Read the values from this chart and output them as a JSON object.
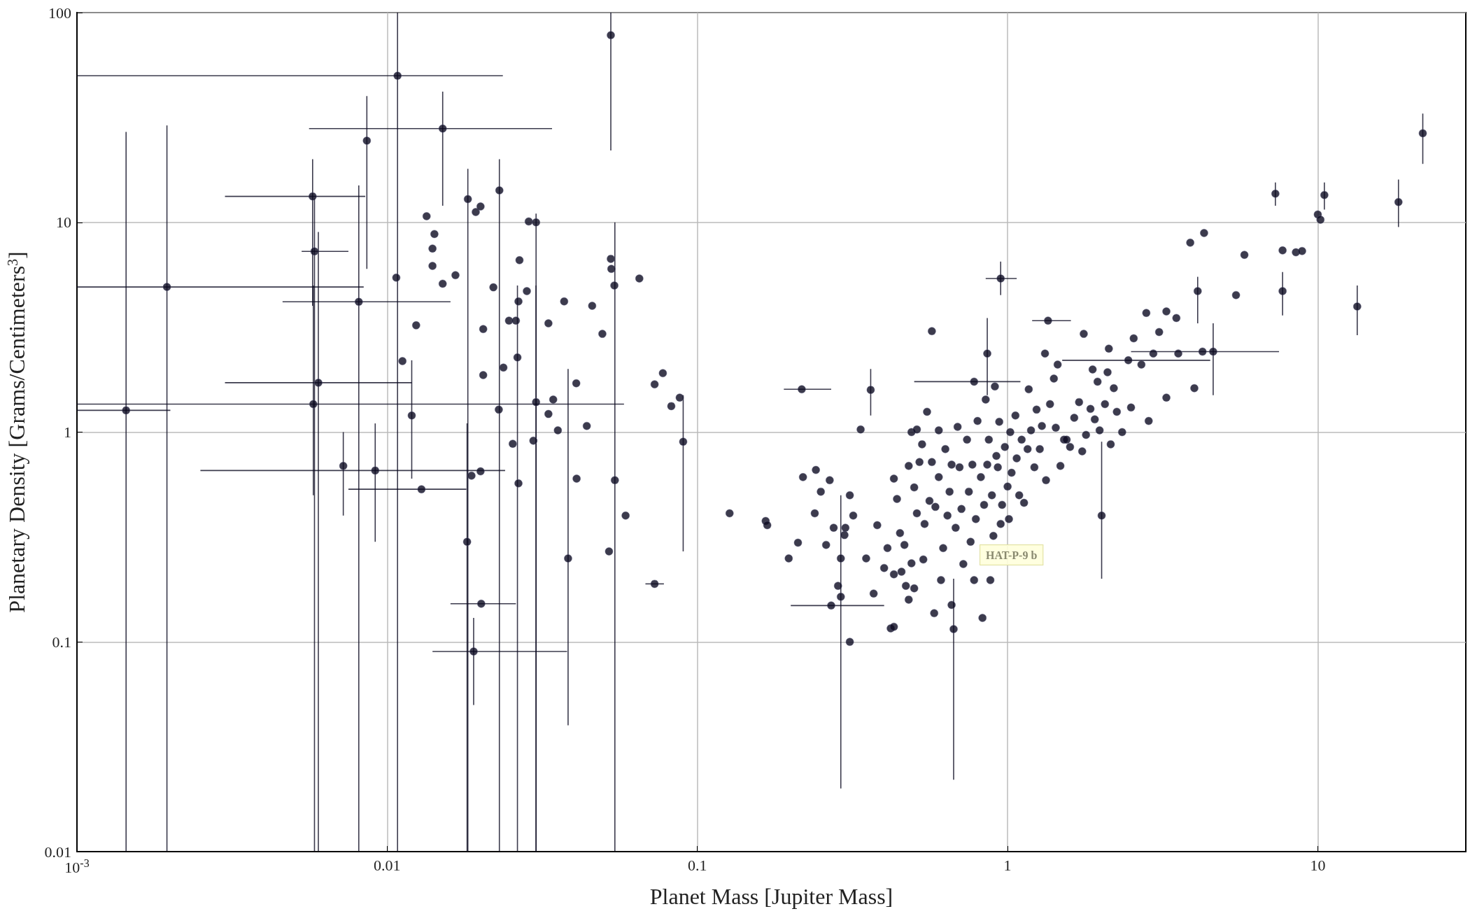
{
  "chart_data": {
    "type": "scatter",
    "xlabel": "Planet Mass [Jupiter Mass]",
    "ylabel": "Planetary Density [Grams/Centimeters$^{3}$]",
    "log": "xy",
    "grid": true,
    "marker": "circle",
    "xlim": [
      0.001,
      30
    ],
    "ylim": [
      0.01,
      100
    ],
    "xticks": [
      {
        "value": 0.001,
        "label": "10$^{-3}$"
      },
      0.01,
      0.1,
      1,
      10
    ],
    "yticks": [
      0.01,
      0.1,
      1,
      10,
      100
    ],
    "annotations": [
      "HAT-P-9 b"
    ],
    "series": [
      {
        "color": "#0b0a20",
        "x": [
          0.00144,
          0.00195,
          0.00575,
          0.00583,
          0.006,
          0.00578,
          0.00722,
          0.0081,
          0.0086,
          0.00915,
          0.0107,
          0.0108,
          0.0112,
          0.012,
          0.0124,
          0.0129,
          0.0134,
          0.014,
          0.0142,
          0.014,
          0.0151,
          0.0151,
          0.0166,
          0.0182,
          0.0193,
          0.02,
          0.0181,
          0.0187,
          0.019,
          0.0201,
          0.02,
          0.0204,
          0.0204,
          0.022,
          0.0229,
          0.023,
          0.0237,
          0.0247,
          0.0254,
          0.026,
          0.0265,
          0.0263,
          0.0265,
          0.0267,
          0.0282,
          0.0286,
          0.0296,
          0.0302,
          0.0302,
          0.0331,
          0.0331,
          0.0343,
          0.0355,
          0.0372,
          0.0383,
          0.0407,
          0.0408,
          0.044,
          0.0458,
          0.0494,
          0.0519,
          0.0526,
          0.0526,
          0.0528,
          0.054,
          0.0542,
          0.0587,
          0.065,
          0.0728,
          0.0728,
          0.0774,
          0.0824,
          0.0877,
          0.09,
          0.127,
          0.166,
          0.168,
          0.197,
          0.211,
          0.217,
          0.219,
          0.239,
          0.241,
          0.25,
          0.26,
          0.267,
          0.27,
          0.275,
          0.284,
          0.29,
          0.29,
          0.298,
          0.3,
          0.31,
          0.31,
          0.318,
          0.336,
          0.35,
          0.362,
          0.37,
          0.38,
          0.4,
          0.41,
          0.42,
          0.43,
          0.43,
          0.43,
          0.44,
          0.45,
          0.455,
          0.465,
          0.47,
          0.48,
          0.48,
          0.49,
          0.49,
          0.5,
          0.5,
          0.51,
          0.51,
          0.52,
          0.53,
          0.535,
          0.54,
          0.55,
          0.56,
          0.57,
          0.57,
          0.58,
          0.585,
          0.6,
          0.6,
          0.61,
          0.62,
          0.63,
          0.64,
          0.65,
          0.66,
          0.66,
          0.67,
          0.68,
          0.69,
          0.7,
          0.71,
          0.72,
          0.74,
          0.75,
          0.76,
          0.77,
          0.78,
          0.78,
          0.79,
          0.8,
          0.82,
          0.83,
          0.84,
          0.85,
          0.86,
          0.86,
          0.87,
          0.88,
          0.89,
          0.9,
          0.91,
          0.92,
          0.93,
          0.95,
          0.94,
          0.95,
          0.96,
          0.98,
          1.0,
          1.01,
          1.02,
          1.03,
          1.06,
          1.07,
          1.09,
          1.11,
          1.13,
          1.16,
          1.17,
          1.19,
          1.22,
          1.24,
          1.27,
          1.29,
          1.32,
          1.33,
          1.35,
          1.37,
          1.41,
          1.43,
          1.45,
          1.48,
          1.52,
          1.55,
          1.59,
          1.64,
          1.7,
          1.74,
          1.76,
          1.79,
          1.85,
          1.88,
          1.91,
          1.95,
          1.98,
          2.01,
          2.06,
          2.1,
          2.12,
          2.15,
          2.2,
          2.25,
          2.34,
          2.45,
          2.5,
          2.55,
          2.7,
          2.8,
          2.85,
          2.95,
          3.08,
          3.25,
          3.5,
          3.55,
          3.25,
          3.88,
          4.0,
          4.1,
          4.3,
          4.25,
          4.6,
          5.45,
          5.8,
          7.3,
          7.7,
          7.7,
          8.5,
          8.9,
          10,
          10.2,
          10.5,
          13.4,
          18.2,
          21.8
        ],
        "values": [
          1.27,
          4.92,
          13.3,
          7.27,
          1.72,
          1.36,
          0.69,
          4.18,
          24.5,
          0.656,
          5.45,
          50,
          2.18,
          1.2,
          3.23,
          0.534,
          10.7,
          7.5,
          8.8,
          6.2,
          28,
          5.1,
          5.6,
          12.9,
          11.2,
          11.9,
          0.3,
          0.62,
          0.09,
          0.152,
          0.65,
          3.1,
          1.87,
          4.9,
          1.28,
          14.2,
          2.03,
          3.4,
          0.88,
          3.4,
          4.2,
          2.27,
          0.57,
          6.6,
          4.7,
          10.1,
          0.91,
          10,
          1.39,
          3.3,
          1.22,
          1.43,
          1.02,
          4.2,
          0.25,
          1.71,
          0.6,
          1.07,
          4.0,
          2.94,
          0.27,
          78,
          6.7,
          6.0,
          5.0,
          0.59,
          0.4,
          5.4,
          1.69,
          0.189,
          1.91,
          1.33,
          1.46,
          0.9,
          0.41,
          0.377,
          0.36,
          0.25,
          0.297,
          1.6,
          0.61,
          0.41,
          0.66,
          0.52,
          0.29,
          0.59,
          0.149,
          0.35,
          0.185,
          0.164,
          0.25,
          0.323,
          0.35,
          0.1,
          0.5,
          0.4,
          1.03,
          0.25,
          1.59,
          0.17,
          0.36,
          0.225,
          0.28,
          0.116,
          0.21,
          0.118,
          0.6,
          0.48,
          0.33,
          0.216,
          0.29,
          0.185,
          0.159,
          0.69,
          0.237,
          1.0,
          0.545,
          0.18,
          1.03,
          0.41,
          0.72,
          0.875,
          0.247,
          0.365,
          1.25,
          0.47,
          0.72,
          3.03,
          0.137,
          0.44,
          0.61,
          1.02,
          0.197,
          0.28,
          0.83,
          0.4,
          0.52,
          0.7,
          0.15,
          0.115,
          0.35,
          1.06,
          0.68,
          0.43,
          0.235,
          0.92,
          0.52,
          0.3,
          0.7,
          1.74,
          0.197,
          0.385,
          1.13,
          0.61,
          0.13,
          0.45,
          1.43,
          0.7,
          2.37,
          0.92,
          0.197,
          0.5,
          0.32,
          1.65,
          0.77,
          0.68,
          5.4,
          1.12,
          0.365,
          0.45,
          0.85,
          0.55,
          0.385,
          1.0,
          0.64,
          1.2,
          0.75,
          0.5,
          0.92,
          0.46,
          0.83,
          1.6,
          1.02,
          0.68,
          1.28,
          0.83,
          1.07,
          2.37,
          0.59,
          3.4,
          1.36,
          1.8,
          1.05,
          2.1,
          0.69,
          0.92,
          0.92,
          0.85,
          1.17,
          1.39,
          0.81,
          2.94,
          0.97,
          1.29,
          1.99,
          1.15,
          1.74,
          1.02,
          0.4,
          1.36,
          1.93,
          2.5,
          0.875,
          1.62,
          1.25,
          1.0,
          2.2,
          1.31,
          2.8,
          2.1,
          3.7,
          1.13,
          2.37,
          3.0,
          3.76,
          3.5,
          2.37,
          1.46,
          8.0,
          1.62,
          4.7,
          8.9,
          2.42,
          2.42,
          4.5,
          7.0,
          13.7,
          7.35,
          4.7,
          7.2,
          7.3,
          10.9,
          10.3,
          13.5,
          3.97,
          12.5,
          26.6
        ],
        "errors": [
          [
            0.01,
            27
          ],
          [
            0.01,
            29
          ],
          [
            4,
            20
          ],
          [
            0.01,
            13
          ],
          [
            0.01,
            9
          ],
          [
            0.5,
            5
          ],
          [
            0.4,
            1.0
          ],
          [
            0.01,
            15
          ],
          [
            6,
            40
          ],
          [
            0.3,
            1.1
          ],
          null,
          [
            0.01,
            100
          ],
          null,
          [
            0.6,
            2.2
          ],
          null,
          null,
          null,
          null,
          null,
          null,
          [
            12,
            42
          ],
          null,
          null,
          [
            0.01,
            18
          ],
          null,
          null,
          [
            0.01,
            1.1
          ],
          null,
          [
            0.05,
            0.13
          ],
          null,
          null,
          null,
          null,
          null,
          null,
          [
            0.01,
            20
          ],
          null,
          null,
          null,
          null,
          null,
          [
            0.01,
            5
          ],
          null,
          null,
          null,
          null,
          null,
          [
            0.01,
            11
          ],
          [
            0.01,
            5
          ],
          null,
          null,
          null,
          null,
          null,
          [
            0.04,
            2
          ],
          null,
          null,
          null,
          null,
          null,
          null,
          [
            22,
            100
          ],
          null,
          null,
          null,
          [
            0.01,
            10
          ],
          null,
          null,
          null,
          null,
          null,
          null,
          null,
          [
            0.27,
            1.5
          ],
          null,
          null,
          null,
          null,
          null,
          null,
          null,
          null,
          null,
          null,
          null,
          null,
          null,
          null,
          null,
          [
            0.02,
            0.5
          ],
          null,
          null,
          null,
          null,
          null,
          null,
          null,
          null,
          [
            1.2,
            2.0
          ],
          null,
          null,
          null,
          null,
          null,
          null,
          null,
          null,
          null,
          null,
          null,
          null,
          null,
          null,
          null,
          null,
          null,
          null,
          null,
          null,
          null,
          null,
          null,
          null,
          null,
          null,
          null,
          null,
          null,
          null,
          null,
          null,
          null,
          null,
          null,
          null,
          null,
          null,
          null,
          null,
          [
            0.022,
            0.2
          ],
          null,
          null,
          null,
          null,
          null,
          null,
          null,
          null,
          null,
          null,
          null,
          null,
          null,
          null,
          null,
          null,
          null,
          null,
          [
            1.5,
            3.5
          ],
          null,
          null,
          null,
          null,
          null,
          null,
          null,
          [
            4.5,
            6.5
          ],
          null,
          null,
          null,
          null,
          null,
          null,
          null,
          null,
          null,
          null,
          null,
          null,
          null,
          null,
          null,
          null,
          null,
          null,
          null,
          null,
          null,
          null,
          null,
          null,
          null,
          null,
          null,
          null,
          null,
          null,
          null,
          null,
          null,
          null,
          null,
          null,
          null,
          null,
          null,
          null,
          null,
          [
            0.2,
            0.9
          ],
          null,
          null,
          null,
          null,
          null,
          null,
          null,
          null,
          null,
          null,
          null,
          null,
          null,
          null,
          null,
          null,
          null,
          null,
          null,
          null,
          null,
          [
            3.3,
            5.5
          ],
          null,
          null,
          [
            1.5,
            3.3
          ],
          null,
          null,
          [
            12,
            15.5
          ],
          null,
          [
            3.6,
            5.8
          ],
          null,
          null,
          null,
          null,
          [
            11.5,
            15.5
          ],
          [
            2.9,
            5
          ],
          [
            9.5,
            16
          ],
          [
            19,
            33
          ]
        ],
        "xerrors": [
          [
            0.001,
            0.002
          ],
          [
            0.001,
            0.0084
          ],
          [
            0.003,
            0.0085
          ],
          [
            0.0053,
            0.0075
          ],
          [
            0.003,
            0.012
          ],
          [
            0.001,
            0.058
          ],
          null,
          [
            0.0046,
            0.016
          ],
          null,
          [
            0.0025,
            0.024
          ],
          null,
          [
            0.001,
            0.0236
          ],
          null,
          null,
          null,
          [
            0.0075,
            0.018
          ],
          null,
          null,
          null,
          null,
          [
            0.0056,
            0.034
          ],
          null,
          null,
          null,
          null,
          null,
          null,
          null,
          [
            0.014,
            0.038
          ],
          [
            0.016,
            0.026
          ],
          null,
          null,
          null,
          null,
          null,
          null,
          null,
          null,
          null,
          null,
          null,
          null,
          null,
          null,
          null,
          null,
          null,
          null,
          null,
          null,
          null,
          null,
          null,
          null,
          null,
          null,
          null,
          null,
          null,
          null,
          null,
          null,
          null,
          null,
          null,
          null,
          null,
          null,
          null,
          [
            0.068,
            0.078
          ],
          null,
          null,
          null,
          null,
          null,
          null,
          null,
          null,
          null,
          [
            0.19,
            0.27
          ],
          null,
          null,
          null,
          null,
          null,
          null,
          [
            0.2,
            0.4
          ],
          null,
          null,
          null,
          null,
          null,
          null,
          null,
          null,
          null,
          null,
          null,
          null,
          null,
          null,
          null,
          null,
          null,
          null,
          null,
          null,
          null,
          null,
          null,
          null,
          null,
          null,
          null,
          null,
          null,
          null,
          null,
          null,
          null,
          null,
          null,
          null,
          null,
          null,
          null,
          null,
          null,
          null,
          null,
          null,
          null,
          null,
          null,
          null,
          null,
          null,
          null,
          null,
          null,
          null,
          null,
          null,
          null,
          null,
          null,
          null,
          null,
          null,
          [
            0.5,
            1.1
          ],
          null,
          null,
          null,
          null,
          null,
          null,
          null,
          null,
          null,
          null,
          null,
          null,
          null,
          null,
          null,
          null,
          [
            0.85,
            1.07
          ],
          null,
          null,
          null,
          null,
          null,
          null,
          null,
          null,
          null,
          null,
          null,
          null,
          null,
          null,
          null,
          null,
          null,
          null,
          null,
          null,
          null,
          null,
          [
            1.2,
            1.6
          ],
          null,
          null,
          null,
          null,
          null,
          null,
          null,
          null,
          null,
          null,
          null,
          null,
          null,
          null,
          null,
          null,
          null,
          null,
          null,
          null,
          null,
          null,
          null,
          null,
          null,
          null,
          [
            1.5,
            4.5
          ],
          null,
          null,
          null,
          null,
          null,
          null,
          null,
          null,
          null,
          null,
          null,
          null,
          null,
          null,
          null,
          [
            2.5,
            7.5
          ],
          null,
          null,
          null,
          null,
          null,
          null,
          null,
          null,
          null,
          null,
          null,
          null,
          null,
          null
        ]
      }
    ]
  }
}
